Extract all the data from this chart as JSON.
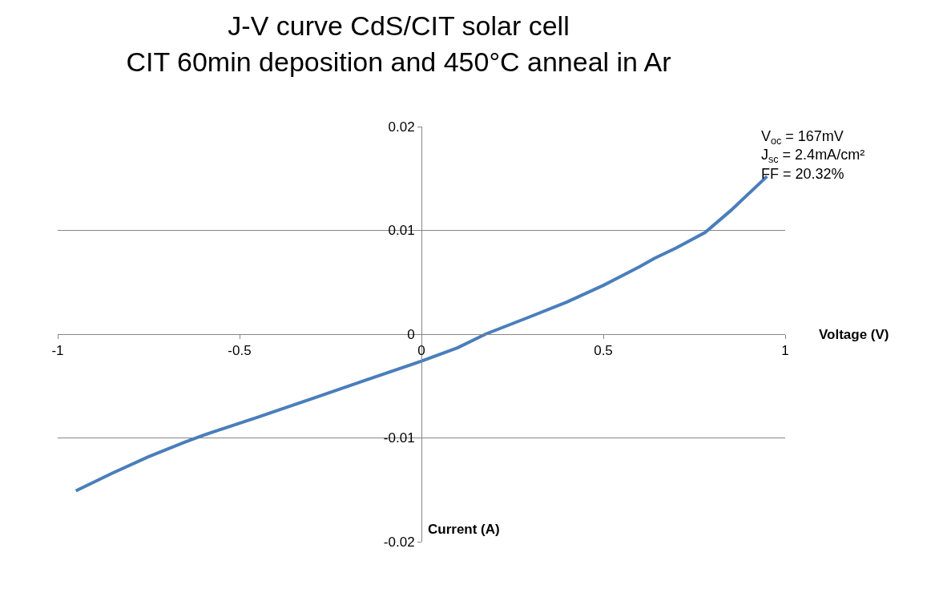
{
  "chart_data": {
    "type": "line",
    "title": "J-V curve CdS/CIT solar cell\nCIT 60min deposition and 450°C anneal in Ar",
    "xlabel": "Voltage (V)",
    "ylabel": "Current (A)",
    "annotations": [
      "V$_{oc}$ = 167mV\nJ$_{sc}$ = 2.4mA/cm²\nFF = 20.32%"
    ],
    "series": [
      {
        "color": "#4a7ebb",
        "x": [
          -0.95,
          -0.85,
          -0.75,
          -0.65,
          -0.58,
          -0.45,
          -0.3,
          -0.15,
          0,
          0.1,
          0.176,
          0.3,
          0.4,
          0.5,
          0.6,
          0.64,
          0.7,
          0.78,
          0.85,
          0.95
        ],
        "values": [
          -0.0151,
          -0.0134,
          -0.0118,
          -0.0104,
          -0.0095,
          -0.008,
          -0.0062,
          -0.0044,
          -0.0026,
          -0.0013,
          0.0,
          0.0017,
          0.0031,
          0.0047,
          0.0065,
          0.0073,
          0.0083,
          0.0098,
          0.0119,
          0.0152
        ]
      }
    ],
    "xlim": [
      -1,
      1
    ],
    "ylim": [
      -0.02,
      0.02
    ],
    "xticks": [
      -1,
      -0.5,
      0,
      0.5,
      1
    ],
    "yticks": [
      -0.02,
      -0.01,
      0,
      0.01,
      0.02
    ],
    "grid": "y",
    "marker": "none",
    "line_style": "solid"
  }
}
